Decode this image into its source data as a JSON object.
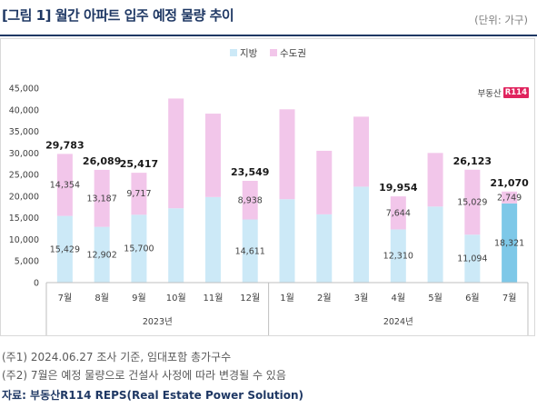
{
  "header": {
    "title": "[그림 1] 월간 아파트 입주 예정 물량 추이",
    "unit": "(단위: 가구)"
  },
  "logo": {
    "text": "부동산",
    "badge": "R114"
  },
  "colors": {
    "region": "#cce9f7",
    "capital": "#f2c6ea",
    "forecast_region": "#7ec8e8",
    "forecast_capital": "#f2c6ea",
    "axis": "#bfbfbf"
  },
  "chart_data": {
    "type": "bar",
    "stacked": true,
    "categories": [
      "7월",
      "8월",
      "9월",
      "10월",
      "11월",
      "12월",
      "1월",
      "2월",
      "3월",
      "4월",
      "5월",
      "6월",
      "7월"
    ],
    "groups": [
      {
        "label": "2023년",
        "from": 0,
        "to": 5
      },
      {
        "label": "2024년",
        "from": 6,
        "to": 12
      }
    ],
    "series": [
      {
        "name": "지방",
        "values": [
          15429,
          12902,
          15700,
          17200,
          19800,
          14611,
          19300,
          15800,
          22200,
          12310,
          17600,
          11094,
          18321
        ]
      },
      {
        "name": "수도권",
        "values": [
          14354,
          13187,
          9717,
          25400,
          19300,
          8938,
          20800,
          14700,
          16200,
          7644,
          12400,
          15029,
          2749
        ]
      }
    ],
    "segment_labels": [
      [
        "15,429",
        "12,902",
        "15,700",
        "",
        "",
        "14,611",
        "",
        "",
        "",
        "12,310",
        "",
        "11,094",
        "18,321"
      ],
      [
        "14,354",
        "13,187",
        "9,717",
        "",
        "",
        "8,938",
        "",
        "",
        "",
        "7,644",
        "",
        "15,029",
        "2,749"
      ]
    ],
    "total_labels": [
      "29,783",
      "26,089",
      "25,417",
      "",
      "",
      "23,549",
      "",
      "",
      "",
      "19,954",
      "",
      "26,123",
      "21,070"
    ],
    "forecast_index": 12,
    "yticks": [
      "0",
      "5,000",
      "10,000",
      "15,000",
      "20,000",
      "25,000",
      "30,000",
      "35,000",
      "40,000",
      "45,000"
    ],
    "ylim": [
      0,
      45000
    ],
    "legend_position": "top-center"
  },
  "notes": [
    "(주1) 2024.06.27 조사 기준, 임대포함 총가구수",
    "(주2) 7월은 예정 물량으로 건설사 사정에 따라 변경될 수 있음"
  ],
  "source": "자료: 부동산R114 REPS(Real Estate Power Solution)"
}
